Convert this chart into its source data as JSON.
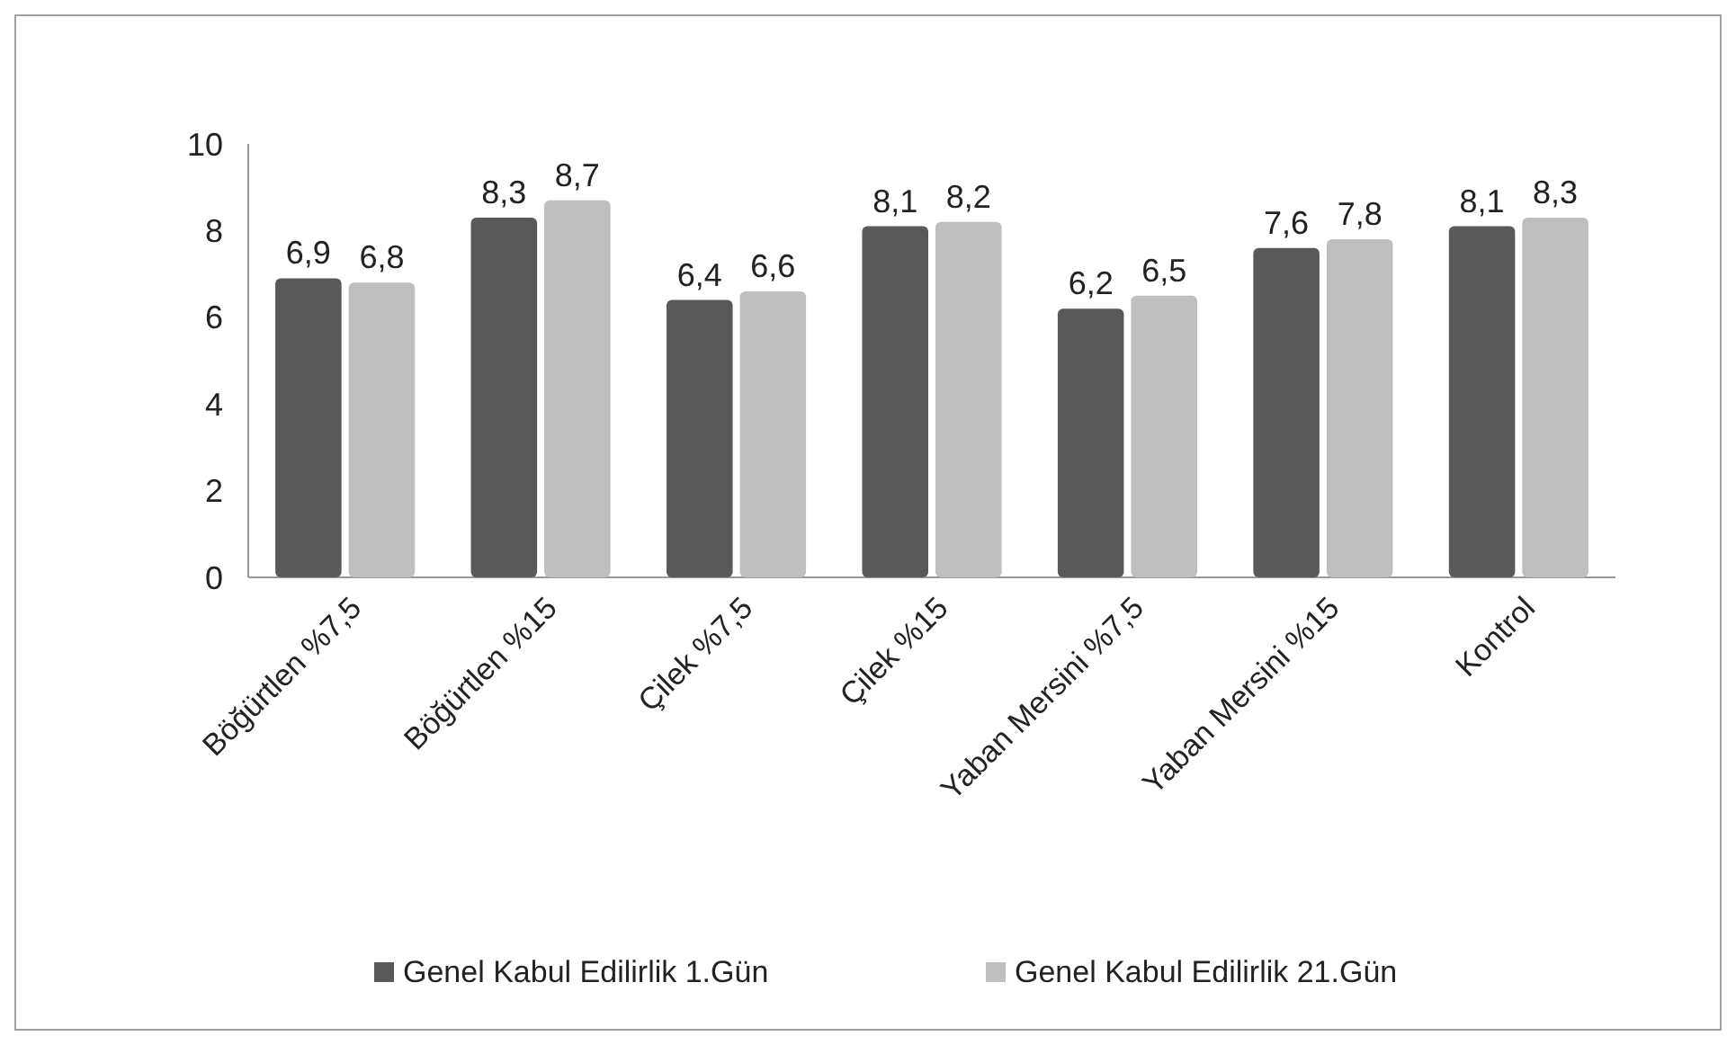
{
  "chart_data": {
    "type": "bar",
    "categories": [
      "Böğürtlen %7,5",
      "Böğürtlen %15",
      "Çilek %7,5",
      "Çilek %15",
      "Yaban Mersini %7,5",
      "Yaban Mersini %15",
      "Kontrol"
    ],
    "series": [
      {
        "name": "Genel Kabul Edilirlik 1.Gün",
        "color": "#595959",
        "values": [
          6.9,
          8.3,
          6.4,
          8.1,
          6.2,
          7.6,
          8.1
        ],
        "value_labels": [
          "6,9",
          "8,3",
          "6,4",
          "8,1",
          "6,2",
          "7,6",
          "8,1"
        ]
      },
      {
        "name": "Genel Kabul Edilirlik 21.Gün",
        "color": "#bfbfbf",
        "values": [
          6.8,
          8.7,
          6.6,
          8.2,
          6.5,
          7.8,
          8.3
        ],
        "value_labels": [
          "6,8",
          "8,7",
          "6,6",
          "8,2",
          "6,5",
          "7,8",
          "8,3"
        ]
      }
    ],
    "ylim": [
      0,
      10
    ],
    "yticks": [
      0,
      2,
      4,
      6,
      8,
      10
    ],
    "grid": false,
    "legend": "bottom"
  }
}
